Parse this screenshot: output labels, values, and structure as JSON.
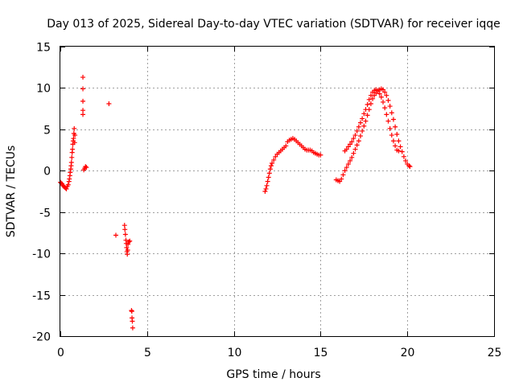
{
  "chart_data": {
    "type": "scatter",
    "title": "Day 013 of 2025, Sidereal Day-to-day VTEC variation (SDTVAR) for receiver iqqe",
    "xlabel": "GPS time / hours",
    "ylabel": "SDTVAR / TECUs",
    "xlim": [
      0,
      25
    ],
    "ylim": [
      -20,
      15
    ],
    "x_ticks": [
      0,
      5,
      10,
      15,
      20,
      25
    ],
    "y_ticks": [
      -20,
      -15,
      -10,
      -5,
      0,
      5,
      10,
      15
    ],
    "x_tick_labels": [
      "0",
      "5",
      "10",
      "15",
      "20",
      "25"
    ],
    "y_tick_labels": [
      "-20",
      "-15",
      "-10",
      "-5",
      "0",
      "5",
      "10",
      "15"
    ],
    "grid": true,
    "marker": "+",
    "color": "#ff0000",
    "series": [
      {
        "name": "SDTVAR",
        "points": [
          [
            0.0,
            -1.4
          ],
          [
            0.05,
            -1.5
          ],
          [
            0.1,
            -1.6
          ],
          [
            0.15,
            -1.8
          ],
          [
            0.2,
            -1.9
          ],
          [
            0.25,
            -2.0
          ],
          [
            0.3,
            -2.1
          ],
          [
            0.35,
            -2.2
          ],
          [
            0.4,
            -1.9
          ],
          [
            0.45,
            -1.7
          ],
          [
            0.5,
            -1.3
          ],
          [
            0.52,
            -1.0
          ],
          [
            0.55,
            -0.6
          ],
          [
            0.57,
            -0.2
          ],
          [
            0.6,
            0.2
          ],
          [
            0.62,
            0.6
          ],
          [
            0.64,
            1.0
          ],
          [
            0.66,
            1.6
          ],
          [
            0.68,
            2.2
          ],
          [
            0.7,
            2.6
          ],
          [
            0.72,
            3.2
          ],
          [
            0.74,
            3.6
          ],
          [
            0.76,
            3.9
          ],
          [
            0.78,
            4.5
          ],
          [
            0.8,
            5.1
          ],
          [
            0.82,
            3.4
          ],
          [
            0.84,
            4.3
          ],
          [
            1.3,
            11.3
          ],
          [
            1.3,
            9.9
          ],
          [
            1.3,
            8.4
          ],
          [
            1.3,
            7.3
          ],
          [
            1.3,
            6.8
          ],
          [
            1.35,
            0.1
          ],
          [
            1.4,
            0.3
          ],
          [
            1.45,
            0.5
          ],
          [
            1.5,
            0.4
          ],
          [
            2.8,
            8.1
          ],
          [
            3.2,
            -7.8
          ],
          [
            3.7,
            -6.6
          ],
          [
            3.72,
            -7.1
          ],
          [
            3.75,
            -7.7
          ],
          [
            3.78,
            -8.4
          ],
          [
            3.8,
            -8.8
          ],
          [
            3.82,
            -9.3
          ],
          [
            3.84,
            -9.8
          ],
          [
            3.86,
            -10.1
          ],
          [
            3.88,
            -9.6
          ],
          [
            3.9,
            -8.9
          ],
          [
            3.95,
            -8.6
          ],
          [
            4.0,
            -8.5
          ],
          [
            4.1,
            -16.9
          ],
          [
            4.12,
            -17.0
          ],
          [
            4.13,
            -17.8
          ],
          [
            4.15,
            -18.2
          ],
          [
            4.17,
            -19.0
          ],
          [
            11.8,
            -2.5
          ],
          [
            11.85,
            -2.2
          ],
          [
            11.9,
            -1.8
          ],
          [
            11.95,
            -1.3
          ],
          [
            12.0,
            -0.8
          ],
          [
            12.05,
            -0.3
          ],
          [
            12.1,
            0.2
          ],
          [
            12.15,
            0.6
          ],
          [
            12.2,
            0.9
          ],
          [
            12.3,
            1.3
          ],
          [
            12.4,
            1.7
          ],
          [
            12.5,
            2.0
          ],
          [
            12.6,
            2.2
          ],
          [
            12.7,
            2.4
          ],
          [
            12.8,
            2.6
          ],
          [
            12.9,
            2.8
          ],
          [
            13.0,
            3.0
          ],
          [
            13.1,
            3.5
          ],
          [
            13.2,
            3.7
          ],
          [
            13.3,
            3.8
          ],
          [
            13.4,
            3.9
          ],
          [
            13.5,
            3.8
          ],
          [
            13.6,
            3.6
          ],
          [
            13.7,
            3.4
          ],
          [
            13.8,
            3.2
          ],
          [
            13.9,
            3.0
          ],
          [
            14.0,
            2.8
          ],
          [
            14.1,
            2.6
          ],
          [
            14.2,
            2.5
          ],
          [
            14.3,
            2.5
          ],
          [
            14.4,
            2.5
          ],
          [
            14.5,
            2.4
          ],
          [
            14.6,
            2.2
          ],
          [
            14.7,
            2.1
          ],
          [
            14.8,
            2.0
          ],
          [
            14.9,
            1.9
          ],
          [
            15.0,
            1.9
          ],
          [
            15.9,
            -1.1
          ],
          [
            16.0,
            -1.2
          ],
          [
            16.1,
            -1.3
          ],
          [
            16.2,
            -1.0
          ],
          [
            16.3,
            -0.5
          ],
          [
            16.4,
            0.0
          ],
          [
            16.5,
            0.4
          ],
          [
            16.6,
            0.8
          ],
          [
            16.7,
            1.2
          ],
          [
            16.8,
            1.6
          ],
          [
            16.9,
            2.1
          ],
          [
            17.0,
            2.6
          ],
          [
            17.1,
            3.1
          ],
          [
            17.2,
            3.6
          ],
          [
            17.3,
            4.2
          ],
          [
            17.4,
            4.8
          ],
          [
            17.5,
            5.4
          ],
          [
            17.6,
            6.0
          ],
          [
            17.7,
            6.7
          ],
          [
            17.8,
            7.4
          ],
          [
            17.9,
            8.1
          ],
          [
            18.0,
            8.7
          ],
          [
            18.1,
            9.1
          ],
          [
            18.2,
            9.4
          ],
          [
            18.3,
            9.7
          ],
          [
            18.4,
            9.8
          ],
          [
            18.5,
            9.9
          ],
          [
            18.6,
            9.8
          ],
          [
            18.7,
            9.5
          ],
          [
            18.8,
            9.1
          ],
          [
            18.9,
            8.5
          ],
          [
            19.0,
            7.8
          ],
          [
            19.1,
            7.0
          ],
          [
            19.2,
            6.2
          ],
          [
            19.3,
            5.3
          ],
          [
            19.4,
            4.4
          ],
          [
            19.5,
            3.6
          ],
          [
            19.6,
            2.9
          ],
          [
            19.7,
            2.3
          ],
          [
            19.8,
            1.7
          ],
          [
            19.9,
            1.2
          ],
          [
            20.0,
            0.8
          ],
          [
            20.1,
            0.6
          ],
          [
            20.15,
            0.5
          ],
          [
            16.4,
            2.4
          ],
          [
            16.5,
            2.6
          ],
          [
            16.6,
            2.9
          ],
          [
            16.7,
            3.2
          ],
          [
            16.8,
            3.5
          ],
          [
            16.9,
            3.9
          ],
          [
            17.0,
            4.3
          ],
          [
            17.1,
            4.8
          ],
          [
            17.2,
            5.3
          ],
          [
            17.3,
            5.8
          ],
          [
            17.4,
            6.3
          ],
          [
            17.5,
            6.9
          ],
          [
            17.6,
            7.4
          ],
          [
            17.7,
            8.0
          ],
          [
            17.8,
            8.6
          ],
          [
            17.9,
            9.1
          ],
          [
            18.0,
            9.5
          ],
          [
            18.1,
            9.7
          ],
          [
            18.2,
            9.8
          ],
          [
            18.3,
            9.6
          ],
          [
            18.4,
            9.3
          ],
          [
            18.5,
            8.9
          ],
          [
            18.6,
            8.3
          ],
          [
            18.7,
            7.6
          ],
          [
            18.8,
            6.8
          ],
          [
            18.9,
            6.0
          ],
          [
            19.0,
            5.1
          ],
          [
            19.1,
            4.3
          ],
          [
            19.2,
            3.6
          ],
          [
            19.3,
            3.0
          ],
          [
            19.4,
            2.5
          ],
          [
            19.5,
            2.4
          ]
        ]
      }
    ]
  }
}
